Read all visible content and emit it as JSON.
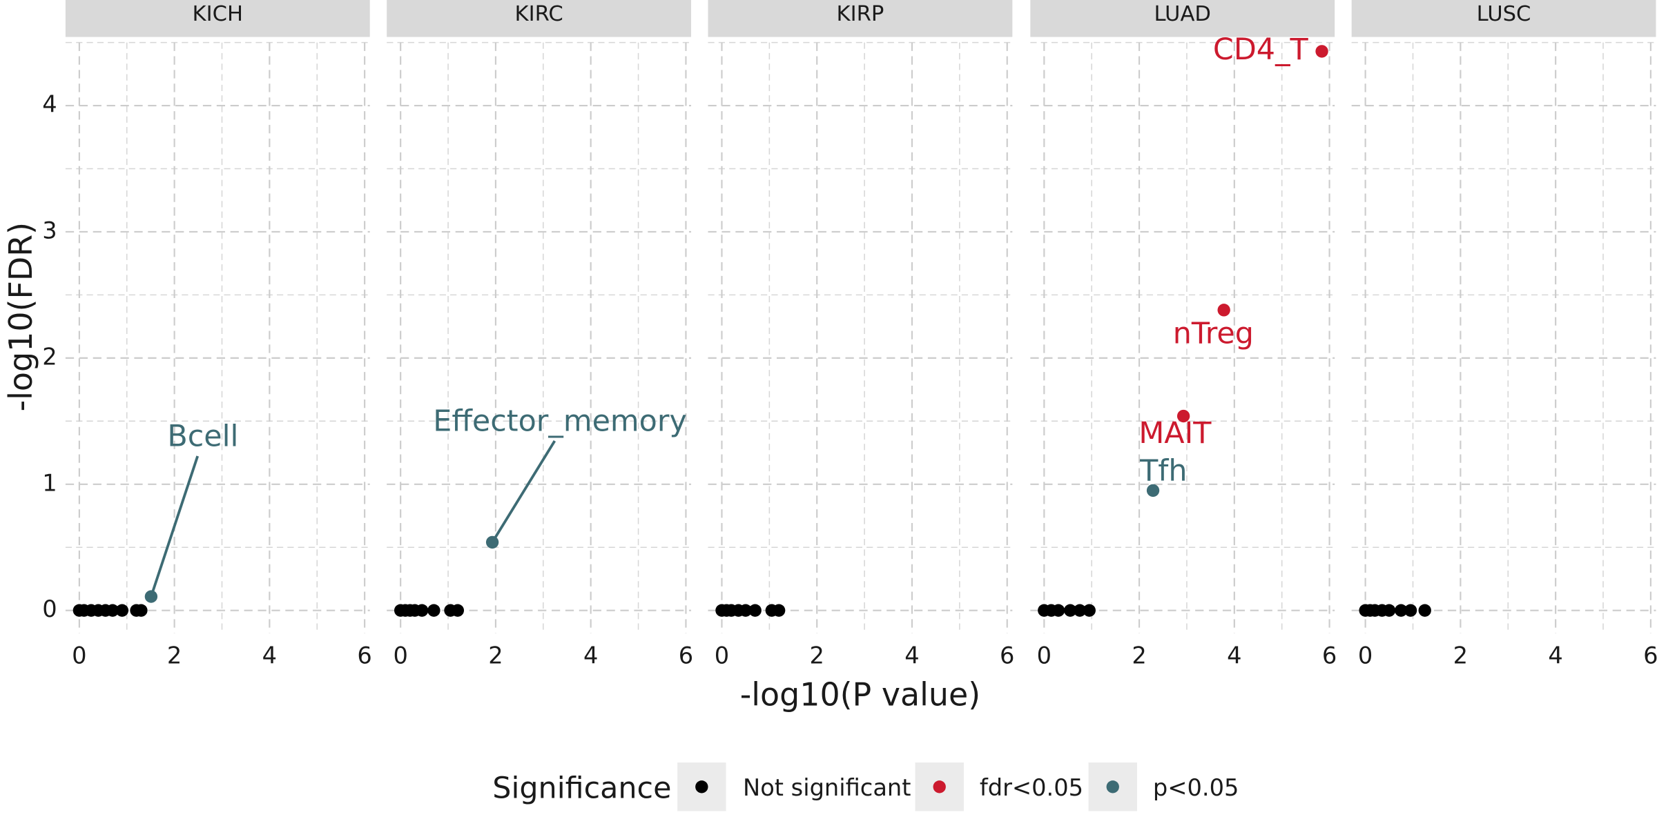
{
  "chart_data": [
    {
      "type": "scatter",
      "title": "KICH",
      "xlim": [
        -0.29,
        6.11
      ],
      "ylim": [
        -0.18,
        4.5
      ],
      "xticks": [
        0,
        2,
        4,
        6
      ],
      "yticks": [
        0,
        1,
        2,
        3,
        4
      ],
      "xminor": [
        1,
        3,
        5
      ],
      "yminor": [
        0.5,
        1.5,
        2.5,
        3.5,
        4.5
      ],
      "grid": true,
      "series": [
        {
          "name": "Not significant",
          "color": "#000000",
          "x": [
            0,
            0.1,
            0.25,
            0.4,
            0.55,
            0.7,
            0.9,
            1.2,
            1.3
          ],
          "values": [
            0,
            0,
            0,
            0,
            0,
            0,
            0,
            0,
            0
          ]
        },
        {
          "name": "p<0.05",
          "color": "#3d6b74",
          "x": [
            1.51
          ],
          "values": [
            0.11
          ],
          "labels": [
            "Bcell"
          ]
        }
      ]
    },
    {
      "type": "scatter",
      "title": "KIRC",
      "xlim": [
        -0.29,
        6.11
      ],
      "ylim": [
        -0.18,
        4.5
      ],
      "xticks": [
        0,
        2,
        4,
        6
      ],
      "yticks": [
        0,
        1,
        2,
        3,
        4
      ],
      "xminor": [
        1,
        3,
        5
      ],
      "yminor": [
        0.5,
        1.5,
        2.5,
        3.5,
        4.5
      ],
      "grid": true,
      "series": [
        {
          "name": "Not significant",
          "color": "#000000",
          "x": [
            0,
            0.1,
            0.2,
            0.3,
            0.45,
            0.7,
            1.05,
            1.2
          ],
          "values": [
            0,
            0,
            0,
            0,
            0,
            0,
            0,
            0
          ]
        },
        {
          "name": "p<0.05",
          "color": "#3d6b74",
          "x": [
            1.93
          ],
          "values": [
            0.54
          ],
          "labels": [
            "Effector_memory"
          ]
        }
      ]
    },
    {
      "type": "scatter",
      "title": "KIRP",
      "xlim": [
        -0.29,
        6.11
      ],
      "ylim": [
        -0.18,
        4.5
      ],
      "xticks": [
        0,
        2,
        4,
        6
      ],
      "yticks": [
        0,
        1,
        2,
        3,
        4
      ],
      "xminor": [
        1,
        3,
        5
      ],
      "yminor": [
        0.5,
        1.5,
        2.5,
        3.5,
        4.5
      ],
      "grid": true,
      "series": [
        {
          "name": "Not significant",
          "color": "#000000",
          "x": [
            0,
            0.1,
            0.2,
            0.35,
            0.5,
            0.7,
            1.05,
            1.2
          ],
          "values": [
            0,
            0,
            0,
            0,
            0,
            0,
            0,
            0
          ]
        }
      ]
    },
    {
      "type": "scatter",
      "title": "LUAD",
      "xlim": [
        -0.29,
        6.11
      ],
      "ylim": [
        -0.18,
        4.5
      ],
      "xticks": [
        0,
        2,
        4,
        6
      ],
      "yticks": [
        0,
        1,
        2,
        3,
        4
      ],
      "xminor": [
        1,
        3,
        5
      ],
      "yminor": [
        0.5,
        1.5,
        2.5,
        3.5,
        4.5
      ],
      "grid": true,
      "series": [
        {
          "name": "Not significant",
          "color": "#000000",
          "x": [
            0,
            0.15,
            0.3,
            0.55,
            0.75,
            0.95
          ],
          "values": [
            0,
            0,
            0,
            0,
            0,
            0
          ]
        },
        {
          "name": "fdr<0.05",
          "color": "#cc1a2e",
          "x": [
            5.84,
            3.78,
            2.93
          ],
          "values": [
            4.43,
            2.38,
            1.54
          ],
          "labels": [
            "CD4_T",
            "nTreg",
            "MAIT"
          ]
        },
        {
          "name": "p<0.05",
          "color": "#3d6b74",
          "x": [
            2.29
          ],
          "values": [
            0.95
          ],
          "labels": [
            "Tfh"
          ]
        }
      ]
    },
    {
      "type": "scatter",
      "title": "LUSC",
      "xlim": [
        -0.29,
        6.11
      ],
      "ylim": [
        -0.18,
        4.5
      ],
      "xticks": [
        0,
        2,
        4,
        6
      ],
      "yticks": [
        0,
        1,
        2,
        3,
        4
      ],
      "xminor": [
        1,
        3,
        5
      ],
      "yminor": [
        0.5,
        1.5,
        2.5,
        3.5,
        4.5
      ],
      "grid": true,
      "series": [
        {
          "name": "Not significant",
          "color": "#000000",
          "x": [
            0,
            0.1,
            0.2,
            0.35,
            0.5,
            0.75,
            0.95,
            1.25
          ],
          "values": [
            0,
            0,
            0,
            0,
            0,
            0,
            0,
            0
          ]
        }
      ]
    }
  ],
  "x_label": "-log10(P value)",
  "y_label": "-log10(FDR)",
  "legend_title": "Significance"
}
